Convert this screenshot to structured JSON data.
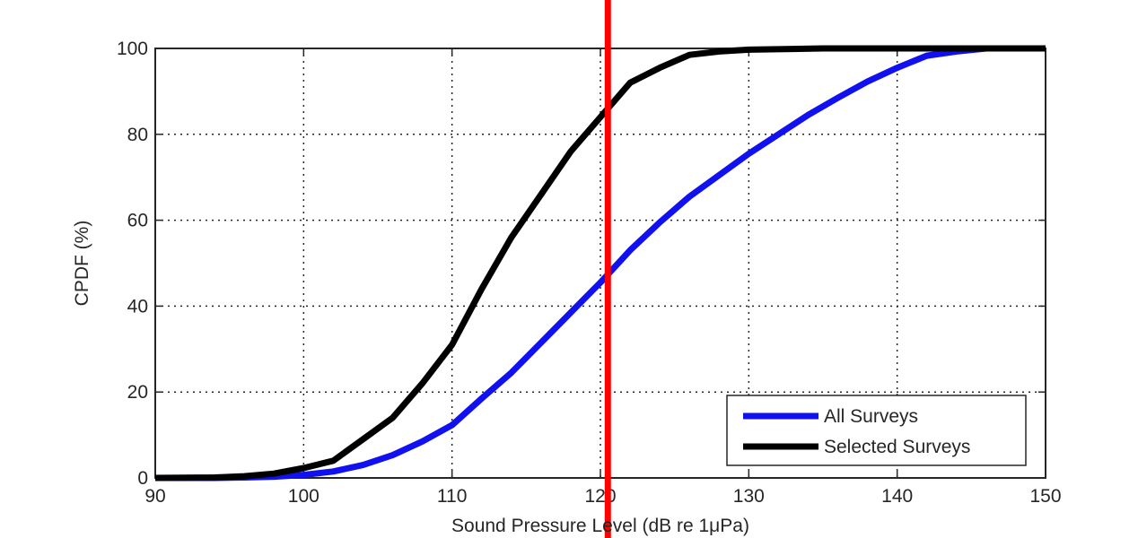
{
  "chart_data": {
    "type": "line",
    "title": "",
    "xlabel": "Sound Pressure Level (dB re 1μPa)",
    "ylabel": "CPDF (%)",
    "xlim": [
      90,
      150
    ],
    "ylim": [
      0,
      100
    ],
    "xticks": [
      90,
      100,
      110,
      120,
      130,
      140,
      150
    ],
    "yticks": [
      0,
      20,
      40,
      60,
      80,
      100
    ],
    "x_tick_labels": [
      "90",
      "100",
      "110",
      "120",
      "130",
      "140",
      "150"
    ],
    "y_tick_labels": [
      "0",
      "20",
      "40",
      "60",
      "80",
      "100"
    ],
    "grid": true,
    "legend_position": "bottom-right",
    "series": [
      {
        "name": "All Surveys",
        "color": "#1010f0",
        "x": [
          90,
          94,
          96,
          98,
          100,
          102,
          104,
          106,
          108,
          110,
          112,
          114,
          116,
          118,
          120,
          122,
          124,
          126,
          128,
          130,
          132,
          134,
          136,
          138,
          140,
          142,
          144,
          146,
          150
        ],
        "y": [
          0,
          0,
          0.1,
          0.3,
          0.7,
          1.5,
          3,
          5.3,
          8.5,
          12.3,
          18.5,
          24.5,
          31.5,
          38.5,
          45.5,
          53,
          59.5,
          65.5,
          70.5,
          75.5,
          80,
          84.5,
          88.5,
          92.3,
          95.5,
          98.3,
          99.3,
          100,
          100
        ]
      },
      {
        "name": "Selected Surveys",
        "color": "#000000",
        "x": [
          90,
          94,
          96,
          98,
          100,
          102,
          104,
          106,
          108,
          110,
          112,
          114,
          116,
          118,
          120,
          122,
          124,
          126,
          128,
          130,
          135,
          140,
          145,
          150
        ],
        "y": [
          0,
          0.1,
          0.4,
          1,
          2.3,
          4,
          9,
          14,
          22,
          31,
          44,
          56,
          66,
          76,
          84,
          92,
          95.5,
          98.5,
          99.3,
          99.7,
          100,
          100,
          100,
          100
        ]
      }
    ],
    "annotations": [
      {
        "type": "vertical-line",
        "x": 120.5,
        "color": "#ff0000"
      }
    ]
  }
}
